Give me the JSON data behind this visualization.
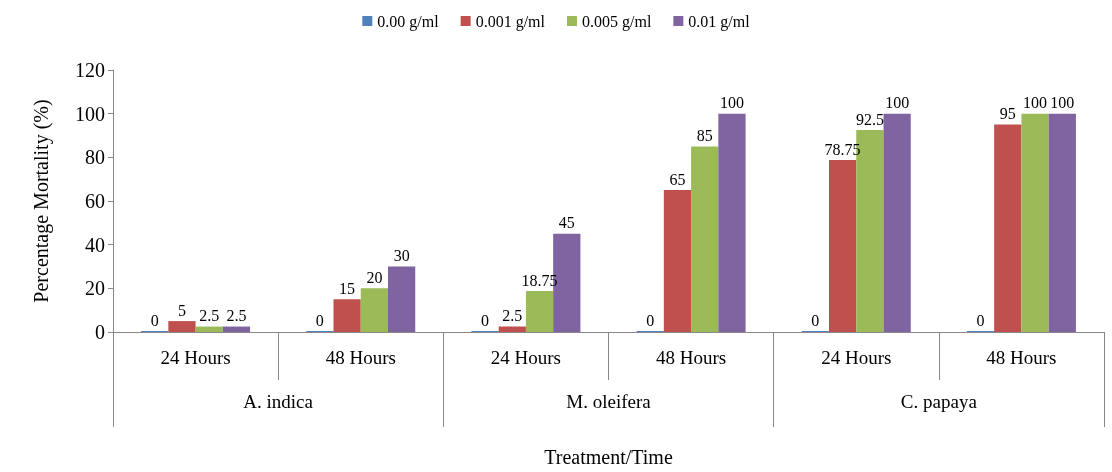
{
  "chart_data": {
    "type": "bar",
    "xlabel": "Treatment/Time",
    "ylabel": "Percentage Mortality (%)",
    "categories": [
      "24 Hours",
      "48 Hours",
      "24 Hours",
      "48 Hours",
      "24 Hours",
      "48 Hours"
    ],
    "annotations": [
      "A. indica",
      "M. oleifera",
      "C. papaya"
    ],
    "series": [
      {
        "name": "0.00 g/ml",
        "color": "#4f81bd",
        "values": [
          0,
          0,
          0,
          0,
          0,
          0
        ]
      },
      {
        "name": "0.001 g/ml",
        "color": "#c0504d",
        "values": [
          5,
          15,
          2.5,
          65,
          78.75,
          95
        ]
      },
      {
        "name": "0.005 g/ml",
        "color": "#9bbb59",
        "values": [
          2.5,
          20,
          18.75,
          85,
          92.5,
          100
        ]
      },
      {
        "name": "0.01 g/ml",
        "color": "#8064a2",
        "values": [
          2.5,
          30,
          45,
          100,
          100,
          100
        ]
      }
    ],
    "ylim": [
      0,
      120
    ],
    "yticks": [
      0,
      20,
      40,
      60,
      80,
      100,
      120
    ],
    "grid": false,
    "legend": "top",
    "data_labels": true
  }
}
